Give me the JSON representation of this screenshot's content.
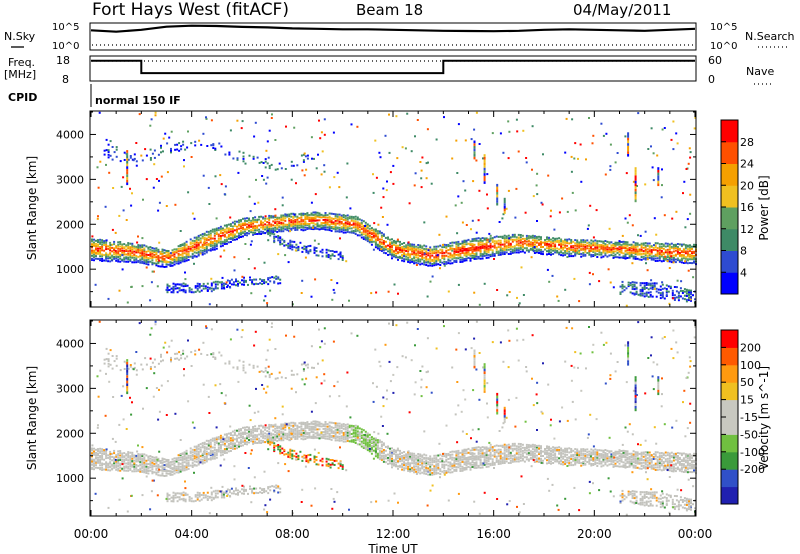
{
  "header": {
    "station": "Fort Hays West (fitACF)",
    "beam": "Beam 18",
    "date": "04/May/2011"
  },
  "top_panels": {
    "nsky_label": "N.Sky",
    "nsearch_label": "N.Search",
    "noise_ticks": [
      "10^5",
      "10^0"
    ],
    "noise_ticks_right": [
      "10^5",
      "10^0"
    ],
    "freq_label_1": "Freq.",
    "freq_label_2": "[MHz]",
    "freq_ticks": [
      "18",
      "8"
    ],
    "nave_label": "Nave",
    "nave_ticks": [
      "60",
      "0"
    ],
    "cpid_label": "CPID",
    "cpid_value": "normal 150 IF"
  },
  "colors": {
    "power": [
      "#0000ff",
      "#2e4bd1",
      "#3e8a66",
      "#5fa060",
      "#f0c020",
      "#f5a000",
      "#ff5000",
      "#ff0000"
    ],
    "velocity": [
      "#ff0000",
      "#ff5a00",
      "#ff9a10",
      "#f0c020",
      "#c8c8c0",
      "#c8c8c0",
      "#70c040",
      "#3a9a3a",
      "#3050c8",
      "#2020b0"
    ],
    "gray": "#c3c3bd"
  },
  "chart_data": [
    {
      "type": "heatmap",
      "name": "power",
      "ylabel": "Slant Range [km]",
      "y_ticks": [
        "4000",
        "3000",
        "2000",
        "1000"
      ],
      "ylim": [
        180,
        4500
      ],
      "colorbar_label": "Power [dB]",
      "colorbar_ticks": [
        "28",
        "24",
        "20",
        "16",
        "12",
        "8",
        "4"
      ],
      "bands": [
        {
          "x": [
            0,
            1.5,
            3,
            4.5,
            6,
            7.5,
            9,
            10.5,
            12,
            13.5,
            15,
            17,
            19,
            21,
            22.5,
            24
          ],
          "center": [
            1450,
            1400,
            1250,
            1600,
            1950,
            2050,
            2100,
            2000,
            1450,
            1300,
            1450,
            1600,
            1500,
            1450,
            1400,
            1350
          ],
          "width": [
            500,
            450,
            400,
            500,
            420,
            400,
            400,
            420,
            450,
            450,
            500,
            420,
            400,
            380,
            420,
            450
          ]
        },
        {
          "x": [
            3,
            4.5,
            6,
            7.5
          ],
          "center": [
            600,
            600,
            750,
            780
          ],
          "width": [
            220,
            220,
            180,
            180
          ]
        },
        {
          "x": [
            7,
            8,
            9,
            10
          ],
          "center": [
            1750,
            1550,
            1400,
            1300
          ],
          "width": [
            220,
            220,
            200,
            200
          ]
        },
        {
          "x": [
            0.5,
            1.5,
            3,
            4.5,
            6,
            7.5,
            9
          ],
          "center": [
            3800,
            3400,
            3700,
            3850,
            3500,
            3300,
            3600
          ],
          "width": [
            500,
            300,
            250,
            200,
            250,
            200,
            200
          ]
        },
        {
          "x": [
            21,
            22.5,
            24
          ],
          "center": [
            600,
            550,
            400
          ],
          "width": [
            300,
            350,
            300
          ]
        }
      ]
    },
    {
      "type": "heatmap",
      "name": "velocity",
      "ylabel": "Slant Range [km]",
      "y_ticks": [
        "4000",
        "3000",
        "2000",
        "1000"
      ],
      "ylim": [
        180,
        4500
      ],
      "colorbar_label": "Velocity [m s^-1]",
      "colorbar_ticks": [
        "200",
        "100",
        "50",
        "15",
        "-15",
        "-50",
        "-100",
        "-200"
      ],
      "xlabel": "Time UT",
      "x_ticks": [
        "00:00",
        "04:00",
        "08:00",
        "12:00",
        "16:00",
        "20:00",
        "00:00"
      ],
      "xlim": [
        0,
        24
      ]
    }
  ],
  "noise_trace": {
    "x": [
      0,
      1,
      2,
      3,
      4,
      5,
      6,
      7,
      8,
      9,
      10,
      11,
      12,
      13,
      14,
      15,
      16,
      17,
      18,
      19,
      20,
      21,
      22,
      23,
      24
    ],
    "sky": [
      0.78,
      0.72,
      0.8,
      0.93,
      0.97,
      0.96,
      0.92,
      0.9,
      0.86,
      0.84,
      0.82,
      0.82,
      0.8,
      0.78,
      0.76,
      0.75,
      0.74,
      0.76,
      0.8,
      0.82,
      0.8,
      0.78,
      0.76,
      0.8,
      0.84
    ]
  },
  "freq_trace": {
    "x": [
      0,
      2,
      2,
      14,
      14,
      24
    ],
    "freq": [
      16.4,
      16.4,
      11.0,
      11.0,
      16.4,
      16.4
    ],
    "nave": [
      60,
      60,
      60,
      60,
      60,
      60
    ]
  }
}
